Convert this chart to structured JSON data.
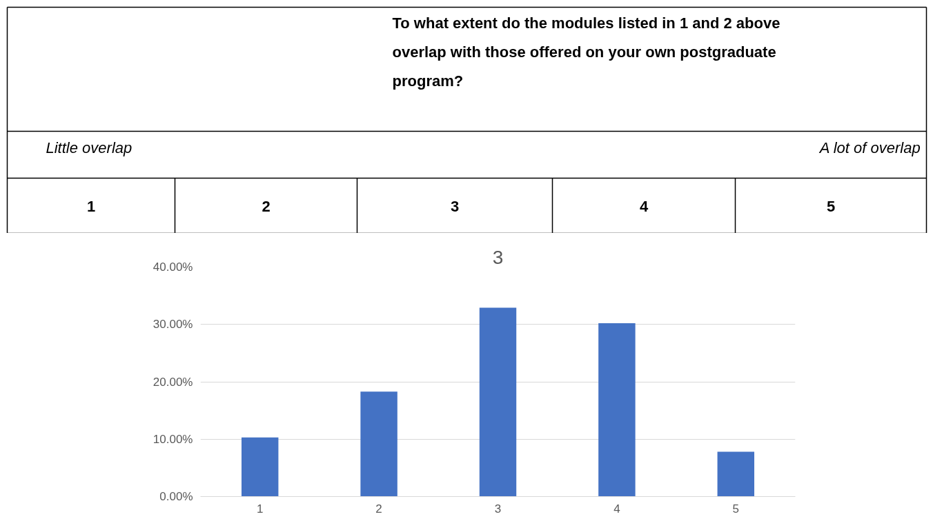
{
  "chart_data": {
    "type": "bar",
    "title": "3",
    "categories": [
      "1",
      "2",
      "3",
      "4",
      "5"
    ],
    "values": [
      10.3,
      18.3,
      32.9,
      30.2,
      7.8
    ],
    "color": "#4472c4",
    "ylim": [
      0,
      40
    ],
    "yticks": [
      {
        "value": 0,
        "label": "0.00%"
      },
      {
        "value": 10,
        "label": "10.00%"
      },
      {
        "value": 20,
        "label": "20.00%"
      },
      {
        "value": 30,
        "label": "30.00%"
      },
      {
        "value": 40,
        "label": "40.00%"
      }
    ],
    "grid": "y",
    "annotations": [
      "To what extent do the modules listed in 1 and 2 above overlap with those offered on your own postgraduate program?",
      "Little overlap",
      "A lot of overlap",
      "1",
      "2",
      "3",
      "4",
      "5"
    ]
  }
}
